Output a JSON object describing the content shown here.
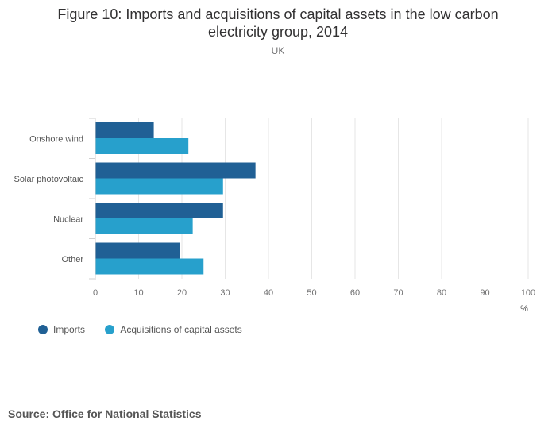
{
  "title": "Figure 10: Imports and acquisitions of capital assets in the low carbon electricity group, 2014",
  "subtitle": "UK",
  "source": "Source: Office for National Statistics",
  "chart_data": {
    "type": "bar",
    "orientation": "horizontal",
    "title": "Figure 10: Imports and acquisitions of capital assets in the low carbon electricity group, 2014",
    "subtitle": "UK",
    "categories": [
      "Onshore wind",
      "Solar photovoltaic",
      "Nuclear",
      "Other"
    ],
    "series": [
      {
        "name": "Imports",
        "color": "#206095",
        "values": [
          13.5,
          37,
          29.5,
          19.5
        ]
      },
      {
        "name": "Acquisitions of capital assets",
        "color": "#27a0cc",
        "values": [
          21.5,
          29.5,
          22.5,
          25
        ]
      }
    ],
    "xlabel": "%",
    "ylabel": "",
    "xlim": [
      0,
      100
    ],
    "xticks": [
      "0",
      "10",
      "20",
      "30",
      "40",
      "50",
      "60",
      "70",
      "80",
      "90",
      "100"
    ],
    "grid": true,
    "legend_position": "bottom-left"
  }
}
